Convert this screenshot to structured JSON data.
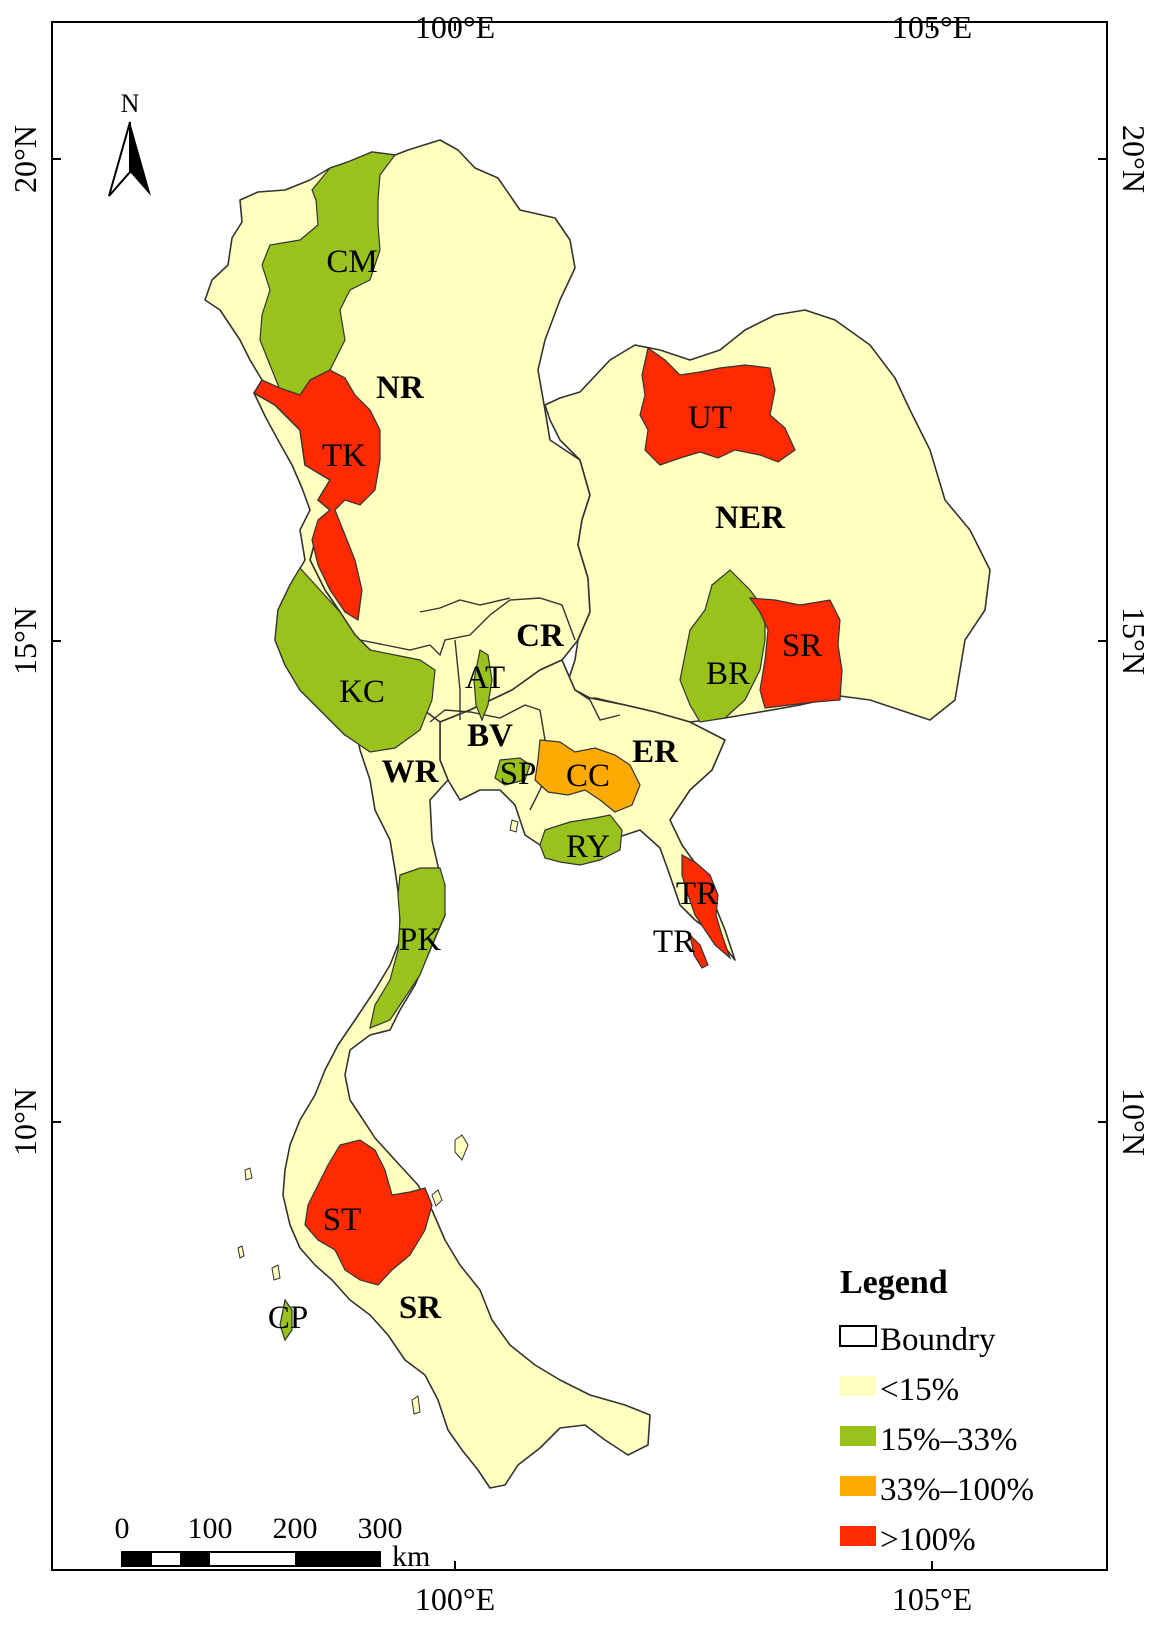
{
  "map": {
    "ticks": {
      "top": [
        "100°E",
        "105°E"
      ],
      "bottom": [
        "100°E",
        "105°E"
      ],
      "left": [
        "20°N",
        "15°N",
        "10°N"
      ],
      "right": [
        "20°N",
        "15°N",
        "10°N"
      ]
    },
    "north_arrow": "N",
    "scale_bar": {
      "labels": [
        "0",
        "100",
        "200",
        "300"
      ],
      "unit": "km"
    },
    "regions": [
      "NR",
      "NER",
      "CR",
      "BV",
      "WR",
      "ER",
      "SR"
    ],
    "provinces": [
      {
        "label": "CM",
        "class": "15%–33%"
      },
      {
        "label": "TK",
        "class": ">100%"
      },
      {
        "label": "UT",
        "class": ">100%"
      },
      {
        "label": "SR",
        "class": ">100%"
      },
      {
        "label": "BR",
        "class": "15%–33%"
      },
      {
        "label": "KC",
        "class": "15%–33%"
      },
      {
        "label": "AT",
        "class": "15%–33%"
      },
      {
        "label": "SP",
        "class": "15%–33%"
      },
      {
        "label": "CC",
        "class": "33%–100%"
      },
      {
        "label": "RY",
        "class": "15%–33%"
      },
      {
        "label": "TR",
        "class": ">100%"
      },
      {
        "label": "TR",
        "class": ">100%"
      },
      {
        "label": "PK",
        "class": "15%–33%"
      },
      {
        "label": "ST",
        "class": ">100%"
      },
      {
        "label": "CP",
        "class": "15%–33%"
      }
    ],
    "colors": {
      "low": "#ffffbf",
      "mid": "#99c21c",
      "high": "#ffaa00",
      "vhigh": "#ff2a00",
      "outline": "#333333"
    },
    "legend": {
      "title": "Legend",
      "items": [
        {
          "label": "Boundry",
          "color": "#ffffff"
        },
        {
          "label": "<15%",
          "color": "#ffffbf"
        },
        {
          "label": "15%–33%",
          "color": "#99c21c"
        },
        {
          "label": "33%–100%",
          "color": "#ffaa00"
        },
        {
          "label": ">100%",
          "color": "#ff2a00"
        }
      ]
    }
  }
}
